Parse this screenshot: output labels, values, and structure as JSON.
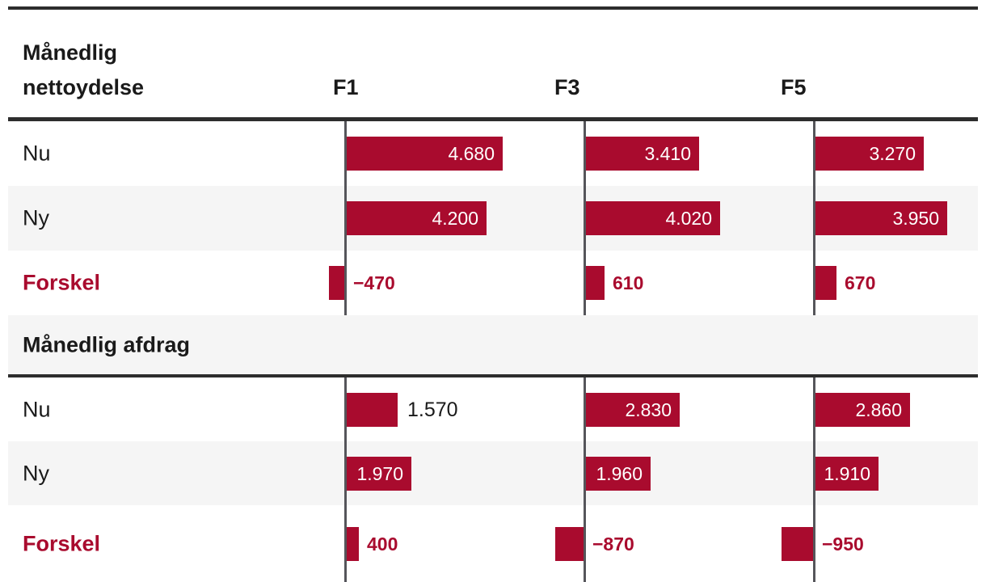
{
  "chart_data": {
    "type": "bar",
    "orientation": "horizontal",
    "title": "Månedlig nettoydelse",
    "columns": [
      "F1",
      "F3",
      "F5"
    ],
    "colors": {
      "bar": "#a90b2e",
      "accent_text": "#a90b2e",
      "row_alt_bg": "#f5f5f5",
      "rule": "#2d2d2d",
      "axis_line": "#55555a",
      "text": "#1a1a1a",
      "bar_label_inside": "#ffffff"
    },
    "grid": "vertical-axes-only",
    "legend": "none",
    "sections": [
      {
        "title": "Månedlig nettoydelse",
        "rows": [
          {
            "label": "Nu",
            "kind": "value",
            "values": [
              4680,
              3410,
              3270
            ],
            "display": [
              "4.680",
              "3.410",
              "3.270"
            ]
          },
          {
            "label": "Ny",
            "kind": "value",
            "values": [
              4200,
              4020,
              3950
            ],
            "display": [
              "4.200",
              "4.020",
              "3.950"
            ]
          },
          {
            "label": "Forskel",
            "kind": "diff",
            "values": [
              -470,
              610,
              670
            ],
            "display": [
              "−470",
              "610",
              "670"
            ]
          }
        ]
      },
      {
        "title": "Månedlig afdrag",
        "rows": [
          {
            "label": "Nu",
            "kind": "value",
            "values": [
              1570,
              2830,
              2860
            ],
            "display": [
              "1.570",
              "2.830",
              "2.860"
            ]
          },
          {
            "label": "Ny",
            "kind": "value",
            "values": [
              1970,
              1960,
              1910
            ],
            "display": [
              "1.970",
              "1.960",
              "1.910"
            ]
          },
          {
            "label": "Forskel",
            "kind": "diff",
            "values": [
              400,
              -870,
              -950
            ],
            "display": [
              "400",
              "−870",
              "−950"
            ]
          }
        ]
      }
    ]
  }
}
